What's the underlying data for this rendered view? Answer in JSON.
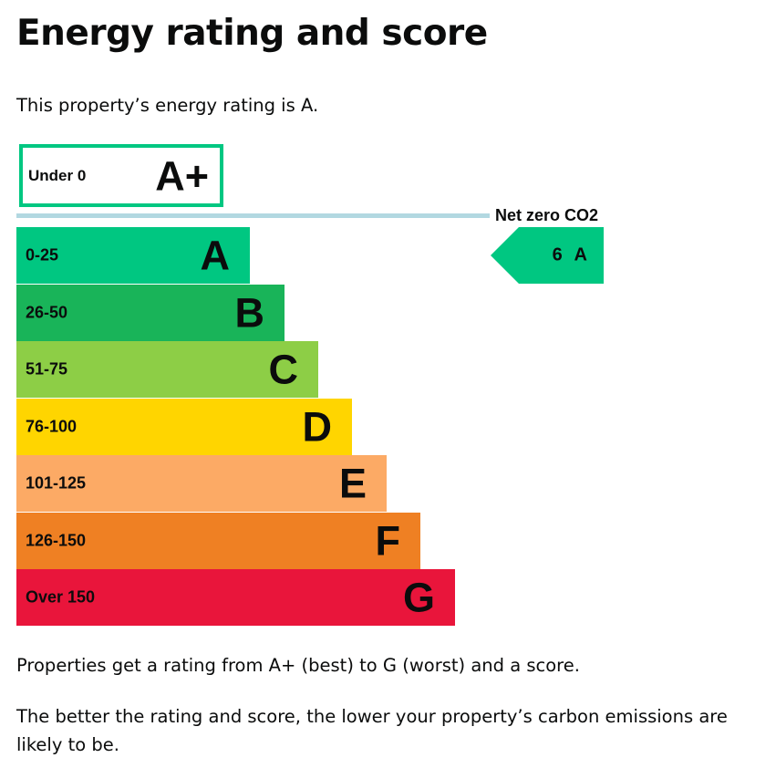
{
  "title": "Energy rating and score",
  "intro": "This property’s energy rating is A.",
  "chart": {
    "aplus": {
      "range": "Under 0",
      "letter": "A+",
      "color": "#00c781"
    },
    "net_zero_label": "Net zero CO2",
    "bands": [
      {
        "range": "0-25",
        "letter": "A",
        "color": "#00c781"
      },
      {
        "range": "26-50",
        "letter": "B",
        "color": "#19b459"
      },
      {
        "range": "51-75",
        "letter": "C",
        "color": "#8dce46"
      },
      {
        "range": "76-100",
        "letter": "D",
        "color": "#ffd500"
      },
      {
        "range": "101-125",
        "letter": "E",
        "color": "#fcaa65"
      },
      {
        "range": "126-150",
        "letter": "F",
        "color": "#ef8023"
      },
      {
        "range": "Over 150",
        "letter": "G",
        "color": "#e9153b"
      }
    ],
    "current": {
      "score": "6",
      "letter": "A",
      "label": "6 A"
    }
  },
  "para1": "Properties get a rating from A+ (best) to G (worst) and a score.",
  "para2": "The better the rating and score, the lower your property’s carbon emissions are likely to be."
}
